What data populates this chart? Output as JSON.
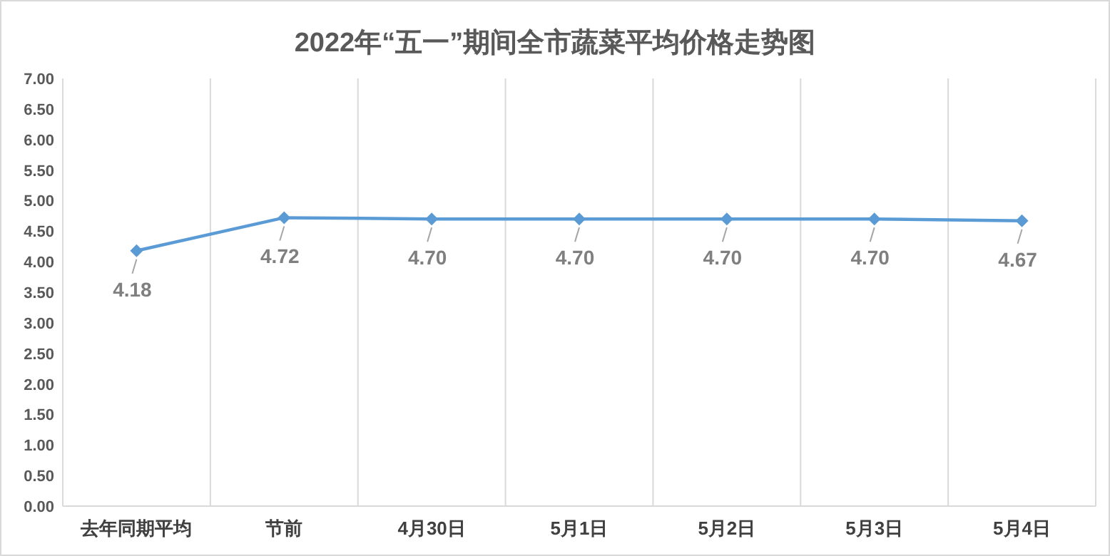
{
  "chart_data": {
    "type": "line",
    "title": "2022年“五一”期间全市蔬菜平均价格走势图",
    "categories": [
      "去年同期平均",
      "节前",
      "4月30日",
      "5月1日",
      "5月2日",
      "5月3日",
      "5月4日"
    ],
    "series": [
      {
        "color": "#5b9bd5",
        "values": [
          4.18,
          4.72,
          4.7,
          4.7,
          4.7,
          4.7,
          4.67
        ],
        "value_labels": [
          "4.18",
          "4.72",
          "4.70",
          "4.70",
          "4.70",
          "4.70",
          "4.67"
        ]
      }
    ],
    "ylim": [
      0,
      7
    ],
    "yticks": [
      {
        "value": 0,
        "label": "0.00"
      },
      {
        "value": 0.5,
        "label": "0.50"
      },
      {
        "value": 1,
        "label": "1.00"
      },
      {
        "value": 1.5,
        "label": "1.50"
      },
      {
        "value": 2,
        "label": "2.00"
      },
      {
        "value": 2.5,
        "label": "2.50"
      },
      {
        "value": 3,
        "label": "3.00"
      },
      {
        "value": 3.5,
        "label": "3.50"
      },
      {
        "value": 4,
        "label": "4.00"
      },
      {
        "value": 4.5,
        "label": "4.50"
      },
      {
        "value": 5,
        "label": "5.00"
      },
      {
        "value": 5.5,
        "label": "5.50"
      },
      {
        "value": 6,
        "label": "6.00"
      },
      {
        "value": 6.5,
        "label": "6.50"
      },
      {
        "value": 7,
        "label": "7.00"
      }
    ],
    "grid": "x",
    "marker": "diamond",
    "line_style": "solid"
  }
}
